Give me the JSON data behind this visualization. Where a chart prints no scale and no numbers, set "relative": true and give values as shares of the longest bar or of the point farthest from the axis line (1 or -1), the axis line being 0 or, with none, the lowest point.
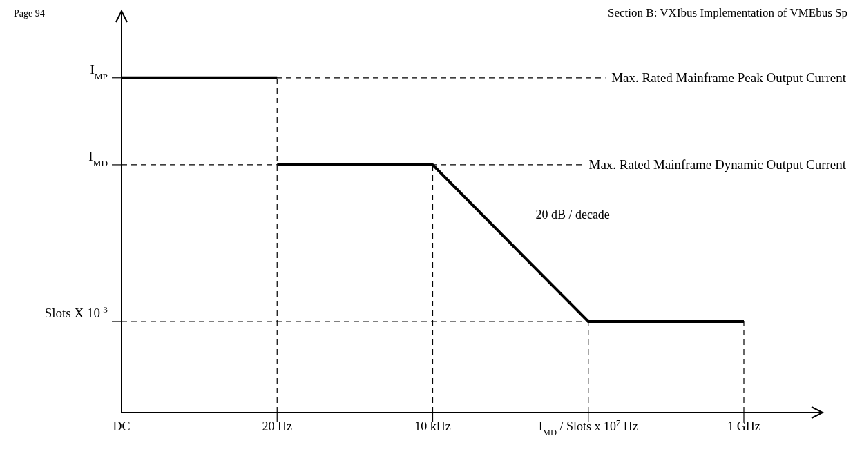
{
  "chart_data": {
    "type": "line",
    "title": "Section B: VXIbus Implementation of VMEbus Sp",
    "relative": true,
    "categories": [
      "DC",
      "20 Hz",
      "10 kHz",
      "I$_{MD}$ / Slots x 10$^{7}$ Hz",
      "1 GHz"
    ],
    "series": [
      {
        "color": "#000000",
        "x": [
          "DC",
          "20 Hz"
        ],
        "values": [
          1,
          1
        ]
      },
      {
        "color": "#000000",
        "x": [
          "20 Hz",
          "10 kHz",
          "I$_{MD}$ / Slots x 10$^{7}$ Hz",
          "1 GHz"
        ],
        "values": [
          0.74,
          0.74,
          0.272,
          0.272
        ]
      }
    ],
    "ref_lines": [
      {
        "axis": "y",
        "value": 1,
        "label": "Max. Rated Mainframe Peak Output Current",
        "line_style": "dashed"
      },
      {
        "axis": "y",
        "value": 0.74,
        "label": "Max. Rated Mainframe Dynamic Output Current",
        "line_style": "dashed"
      },
      {
        "axis": "y",
        "value": 0.272,
        "line_style": "dashed"
      },
      {
        "axis": "x",
        "value": "20 Hz",
        "line_style": "dashed"
      },
      {
        "axis": "x",
        "value": "10 kHz",
        "line_style": "dashed"
      },
      {
        "axis": "x",
        "value": "I$_{MD}$ / Slots x 10$^{7}$ Hz",
        "line_style": "dashed"
      },
      {
        "axis": "x",
        "value": "1 GHz",
        "line_style": "dashed"
      }
    ],
    "annotations": [
      "Page 94",
      "20 dB / decade",
      "I$_{MP}$",
      "I$_{MD}$",
      "Slots X 10$^{-3}$"
    ]
  }
}
